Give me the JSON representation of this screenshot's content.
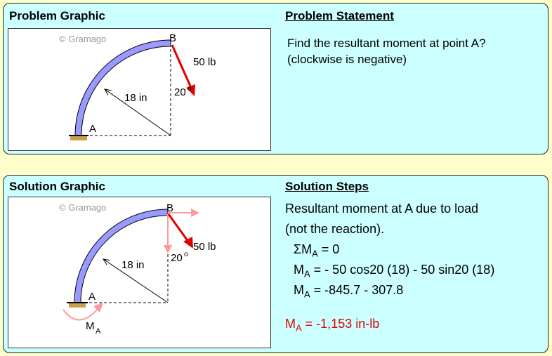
{
  "problem": {
    "graphic_title": "Problem Graphic",
    "statement_title": "Problem Statement",
    "statement_lines": [
      "Find the resultant moment at point A?",
      "(clockwise is negative)"
    ],
    "watermark": "© Gramago",
    "labels": {
      "A": "A",
      "B": "B",
      "force": "50 lb",
      "radius": "18 in",
      "angle": "20",
      "angle_sup": "o"
    }
  },
  "solution": {
    "graphic_title": "Solution Graphic",
    "steps_title": "Solution Steps",
    "intro_lines": [
      "Resultant moment at A due to load",
      "(not the reaction)."
    ],
    "eq1": {
      "pre": "ΣM",
      "sub": "A",
      "post": " = 0"
    },
    "eq2": {
      "pre": "M",
      "sub": "A",
      "post": " = - 50 cos20 (18) - 50 sin20 (18)"
    },
    "eq3": {
      "pre": "M",
      "sub": "A",
      "post": " = -845.7 - 307.8"
    },
    "result": {
      "pre": "M",
      "sub": "A",
      "post": " = -1,153 in-lb"
    },
    "watermark": "© Gramago",
    "labels": {
      "A": "A",
      "B": "B",
      "force": "50 lb",
      "radius": "18 in",
      "angle": "20",
      "angle_sup": "o",
      "moment": "M",
      "moment_sub": "A"
    }
  },
  "colors": {
    "background": "#ffffcc",
    "panel": "#ccffff",
    "beam": "#9999ff",
    "force": "#e00000",
    "component": "#ff9999",
    "result": "#e00000"
  }
}
